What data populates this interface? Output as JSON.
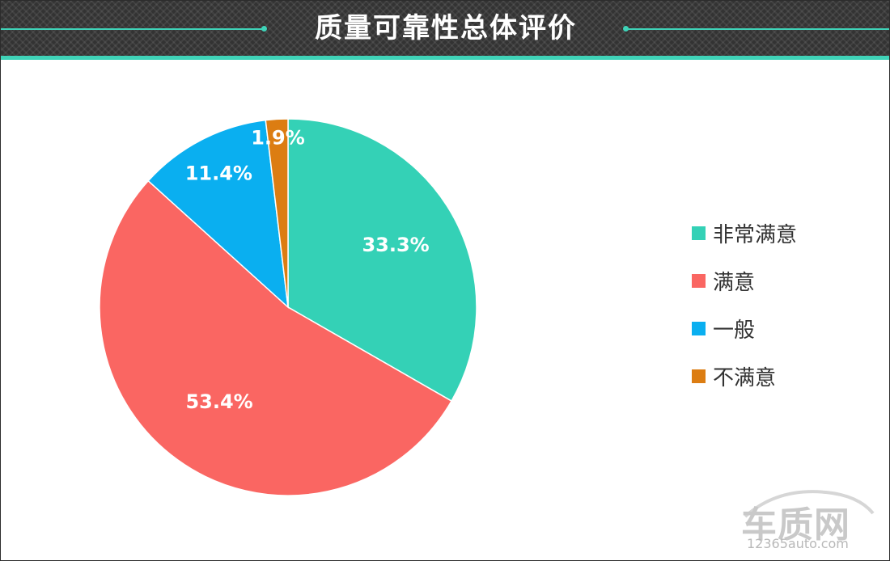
{
  "header": {
    "title": "质量可靠性总体评价"
  },
  "chart_data": {
    "type": "pie",
    "title": "质量可靠性总体评价",
    "start_angle_deg": 0,
    "direction": "clockwise",
    "slices": [
      {
        "name": "非常满意",
        "value": 33.3,
        "label": "33.3%",
        "color": "#34d1b6"
      },
      {
        "name": "满意",
        "value": 53.4,
        "label": "53.4%",
        "color": "#fa6662"
      },
      {
        "name": "一般",
        "value": 11.4,
        "label": "11.4%",
        "color": "#0aaff0"
      },
      {
        "name": "不满意",
        "value": 1.9,
        "label": "1.9%",
        "color": "#dc7d12"
      }
    ],
    "legend_position": "right"
  },
  "watermark": {
    "brand": "车质网",
    "url": "12365auto.com"
  }
}
